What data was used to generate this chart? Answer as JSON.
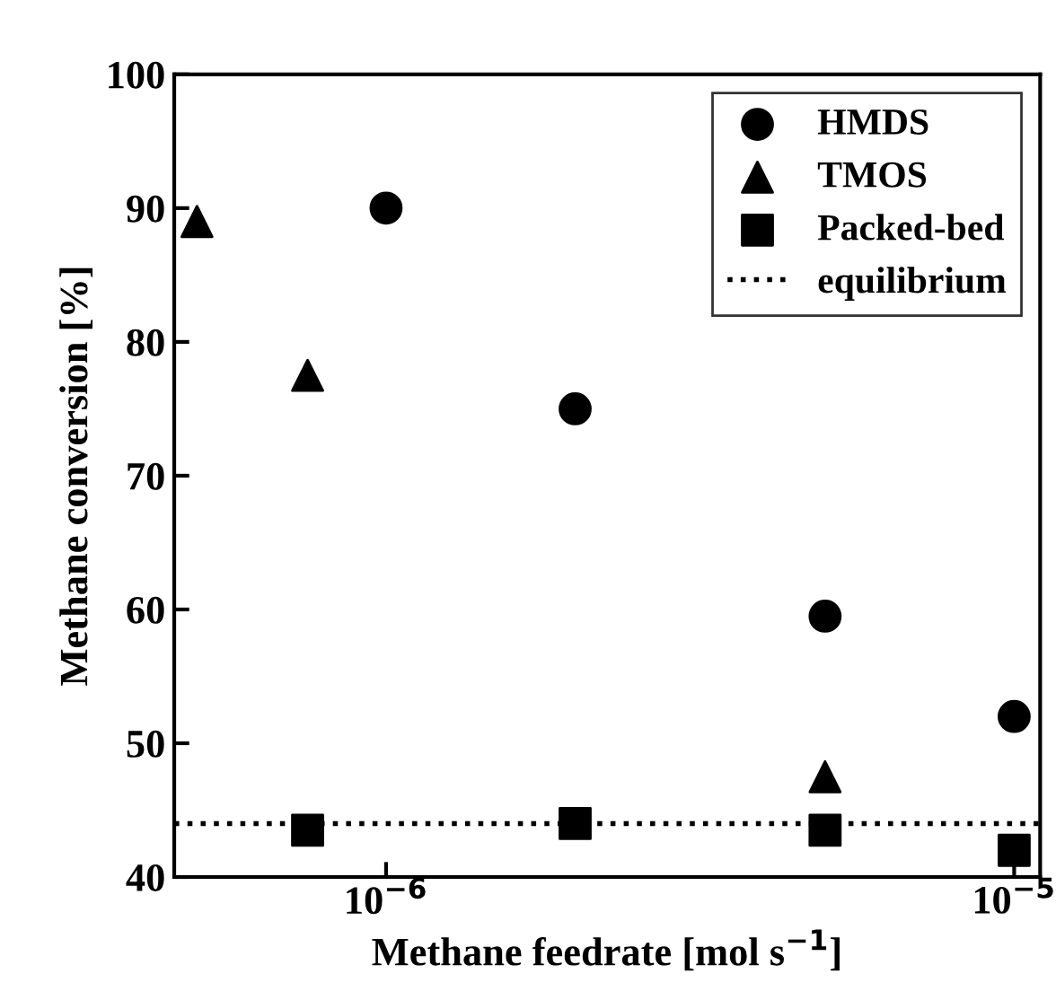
{
  "chart_data": {
    "type": "scatter",
    "xlabel": "Methane feedrate [mol s$^{−1}$]",
    "ylabel": "Methane conversion [%]",
    "log": "x",
    "xlim": [
      4.6e-07,
      1.1e-05
    ],
    "xticks": [
      {
        "value": 1e-06,
        "label": "10$^{−6}$"
      },
      {
        "value": 1e-05,
        "label": "10$^{−5}$"
      }
    ],
    "ylim": [
      40,
      100
    ],
    "yticks": [
      40,
      50,
      60,
      70,
      80,
      90,
      100
    ],
    "grid": false,
    "legend": "top right",
    "series": [
      {
        "name": "HMDS",
        "color": "#000000",
        "marker": "circle",
        "x": [
          1e-06,
          2e-06,
          5e-06,
          1e-05
        ],
        "values": [
          90,
          75,
          59.5,
          52
        ]
      },
      {
        "name": "TMOS",
        "color": "#000000",
        "marker": "triangle",
        "x": [
          5e-07,
          7.5e-07,
          5e-06
        ],
        "values": [
          89,
          77.5,
          47.5
        ]
      },
      {
        "name": "Packed-bed",
        "color": "#000000",
        "marker": "square",
        "x": [
          7.5e-07,
          2e-06,
          5e-06,
          1e-05
        ],
        "values": [
          43.5,
          44,
          43.5,
          42
        ]
      }
    ],
    "ref_lines": [
      {
        "axis": "y",
        "value": 44,
        "label": "equilibrium",
        "color": "#000000",
        "line_style": "dotted"
      }
    ]
  }
}
